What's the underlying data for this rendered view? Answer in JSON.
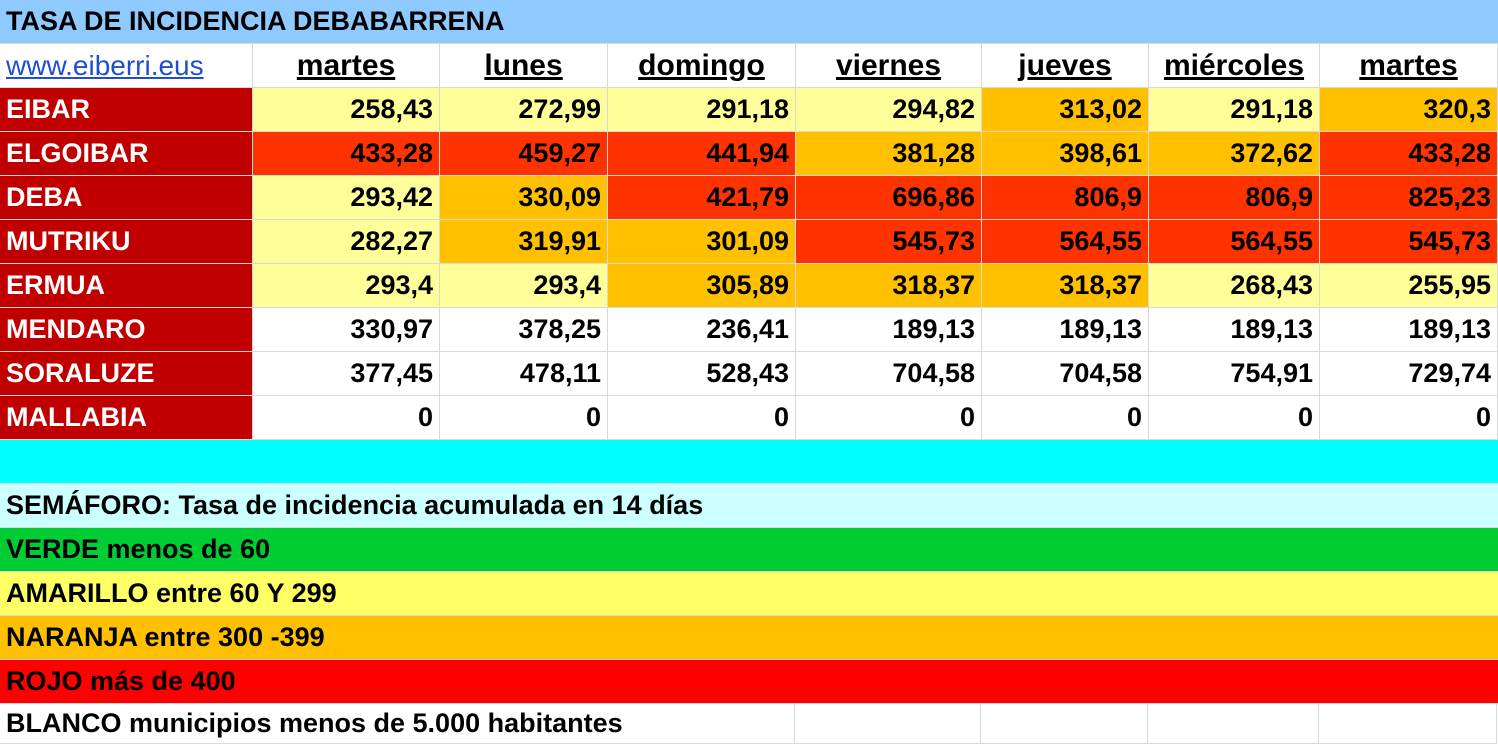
{
  "title": "TASA DE INCIDENCIA DEBABARRENA",
  "link": "www.eiberri.eus",
  "days": [
    "martes",
    "lunes",
    "domingo",
    "viernes",
    "jueves",
    "miércoles",
    "martes"
  ],
  "colors": {
    "title_bg": "#8ec9ff",
    "name_bg": "#c00000",
    "amarillo_light": "#ffff99",
    "naranja": "#ffc000",
    "rojo": "#ff3300",
    "blanco": "#ffffff",
    "cyan": "#00ffff",
    "light_cyan": "#ccffff",
    "verde": "#00cc33",
    "amarillo": "#ffff66",
    "rojo_legend": "#ff0000"
  },
  "rows": [
    {
      "name": "EIBAR",
      "values": [
        "258,43",
        "272,99",
        "291,18",
        "294,82",
        "313,02",
        "291,18",
        "320,3"
      ],
      "levels": [
        "amarillo_light",
        "amarillo_light",
        "amarillo_light",
        "amarillo_light",
        "naranja",
        "amarillo_light",
        "naranja"
      ]
    },
    {
      "name": "ELGOIBAR",
      "values": [
        "433,28",
        "459,27",
        "441,94",
        "381,28",
        "398,61",
        "372,62",
        "433,28"
      ],
      "levels": [
        "rojo",
        "rojo",
        "rojo",
        "naranja",
        "naranja",
        "naranja",
        "rojo"
      ]
    },
    {
      "name": "DEBA",
      "values": [
        "293,42",
        "330,09",
        "421,79",
        "696,86",
        "806,9",
        "806,9",
        "825,23"
      ],
      "levels": [
        "amarillo_light",
        "naranja",
        "rojo",
        "rojo",
        "rojo",
        "rojo",
        "rojo"
      ]
    },
    {
      "name": "MUTRIKU",
      "values": [
        "282,27",
        "319,91",
        "301,09",
        "545,73",
        "564,55",
        "564,55",
        "545,73"
      ],
      "levels": [
        "amarillo_light",
        "naranja",
        "naranja",
        "rojo",
        "rojo",
        "rojo",
        "rojo"
      ]
    },
    {
      "name": "ERMUA",
      "values": [
        "293,4",
        "293,4",
        "305,89",
        "318,37",
        "318,37",
        "268,43",
        "255,95"
      ],
      "levels": [
        "amarillo_light",
        "amarillo_light",
        "naranja",
        "naranja",
        "naranja",
        "amarillo_light",
        "amarillo_light"
      ]
    },
    {
      "name": "MENDARO",
      "values": [
        "330,97",
        "378,25",
        "236,41",
        "189,13",
        "189,13",
        "189,13",
        "189,13"
      ],
      "levels": [
        "blanco",
        "blanco",
        "blanco",
        "blanco",
        "blanco",
        "blanco",
        "blanco"
      ]
    },
    {
      "name": "SORALUZE",
      "values": [
        "377,45",
        "478,11",
        "528,43",
        "704,58",
        "704,58",
        "754,91",
        "729,74"
      ],
      "levels": [
        "blanco",
        "blanco",
        "blanco",
        "blanco",
        "blanco",
        "blanco",
        "blanco"
      ]
    },
    {
      "name": "MALLABIA",
      "values": [
        "0",
        "0",
        "0",
        "0",
        "0",
        "0",
        "0"
      ],
      "levels": [
        "blanco",
        "blanco",
        "blanco",
        "blanco",
        "blanco",
        "blanco",
        "blanco"
      ]
    }
  ],
  "legend": {
    "title": "SEMÁFORO:  Tasa de incidencia acumulada en 14 días",
    "verde": "VERDE menos de 60",
    "amarillo": "AMARILLO entre 60 Y 299",
    "naranja": "NARANJA entre 300 -399",
    "rojo": "ROJO más de 400",
    "blanco": "BLANCO municipios menos de 5.000 habitantes"
  }
}
